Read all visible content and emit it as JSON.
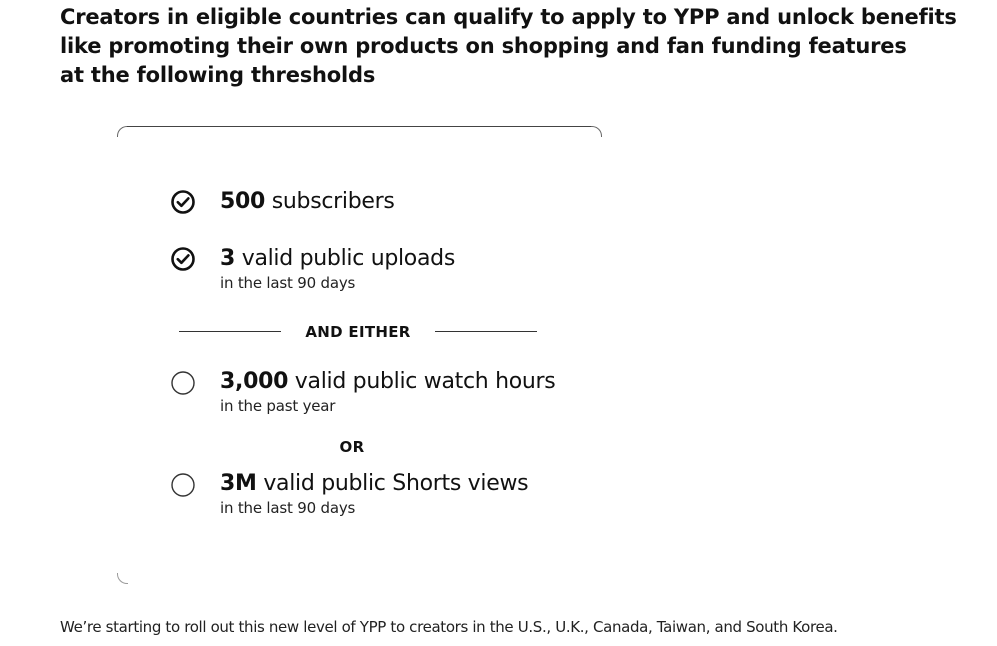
{
  "headline": {
    "line1": "Creators in eligible countries can qualify to apply to YPP and unlock benefits",
    "line2": "like promoting their own products on shopping and fan funding features",
    "line3": "at the following thresholds"
  },
  "requirements": [
    {
      "status": "met",
      "value": "500",
      "label": "subscribers",
      "sub": ""
    },
    {
      "status": "met",
      "value": "3",
      "label": "valid public uploads",
      "sub": "in the last 90 days"
    },
    {
      "status": "unmet",
      "value": "3,000",
      "label": "valid public watch hours",
      "sub": "in the past year"
    },
    {
      "status": "unmet",
      "value": "3M",
      "label": "valid public Shorts views",
      "sub": "in the last 90 days"
    }
  ],
  "divider_label": "AND EITHER",
  "or_label": "OR",
  "footnote": "We’re starting to roll out this new level of YPP to creators in the U.S., U.K., Canada, Taiwan, and South Korea.",
  "icons": {
    "met": "check-circle-icon",
    "unmet": "empty-circle-icon"
  },
  "colors": {
    "text": "#111111",
    "background": "#ffffff"
  }
}
